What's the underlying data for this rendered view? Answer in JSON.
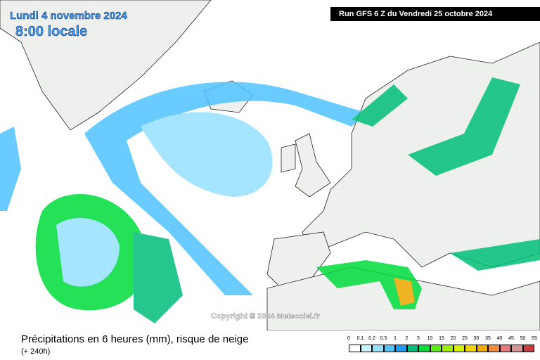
{
  "header": {
    "date": "Lundi 4 novembre 2024",
    "time": "8:00 locale",
    "run": "Run GFS 6 Z du Vendredi 25 octobre 2024"
  },
  "copyright": "Copyright © 2024 Meteociel.fr",
  "footer": {
    "title": "Précipitations en 6 heures (mm), risque de neige",
    "lead": "(+ 240h)"
  },
  "legend": {
    "scale": [
      0,
      0.1,
      0.2,
      0.5,
      1,
      2,
      5,
      10,
      15,
      20,
      25,
      30,
      35,
      40,
      45,
      50,
      55
    ],
    "colors": [
      "#ffffff",
      "#c8f5ff",
      "#96e1ff",
      "#50c3ff",
      "#1e9bff",
      "#00be78",
      "#00dc3c",
      "#5aeb14",
      "#9bf000",
      "#d2f000",
      "#f0d200",
      "#f0aa00",
      "#f08c3c",
      "#e67878",
      "#d79696",
      "#c83c3c"
    ]
  }
}
